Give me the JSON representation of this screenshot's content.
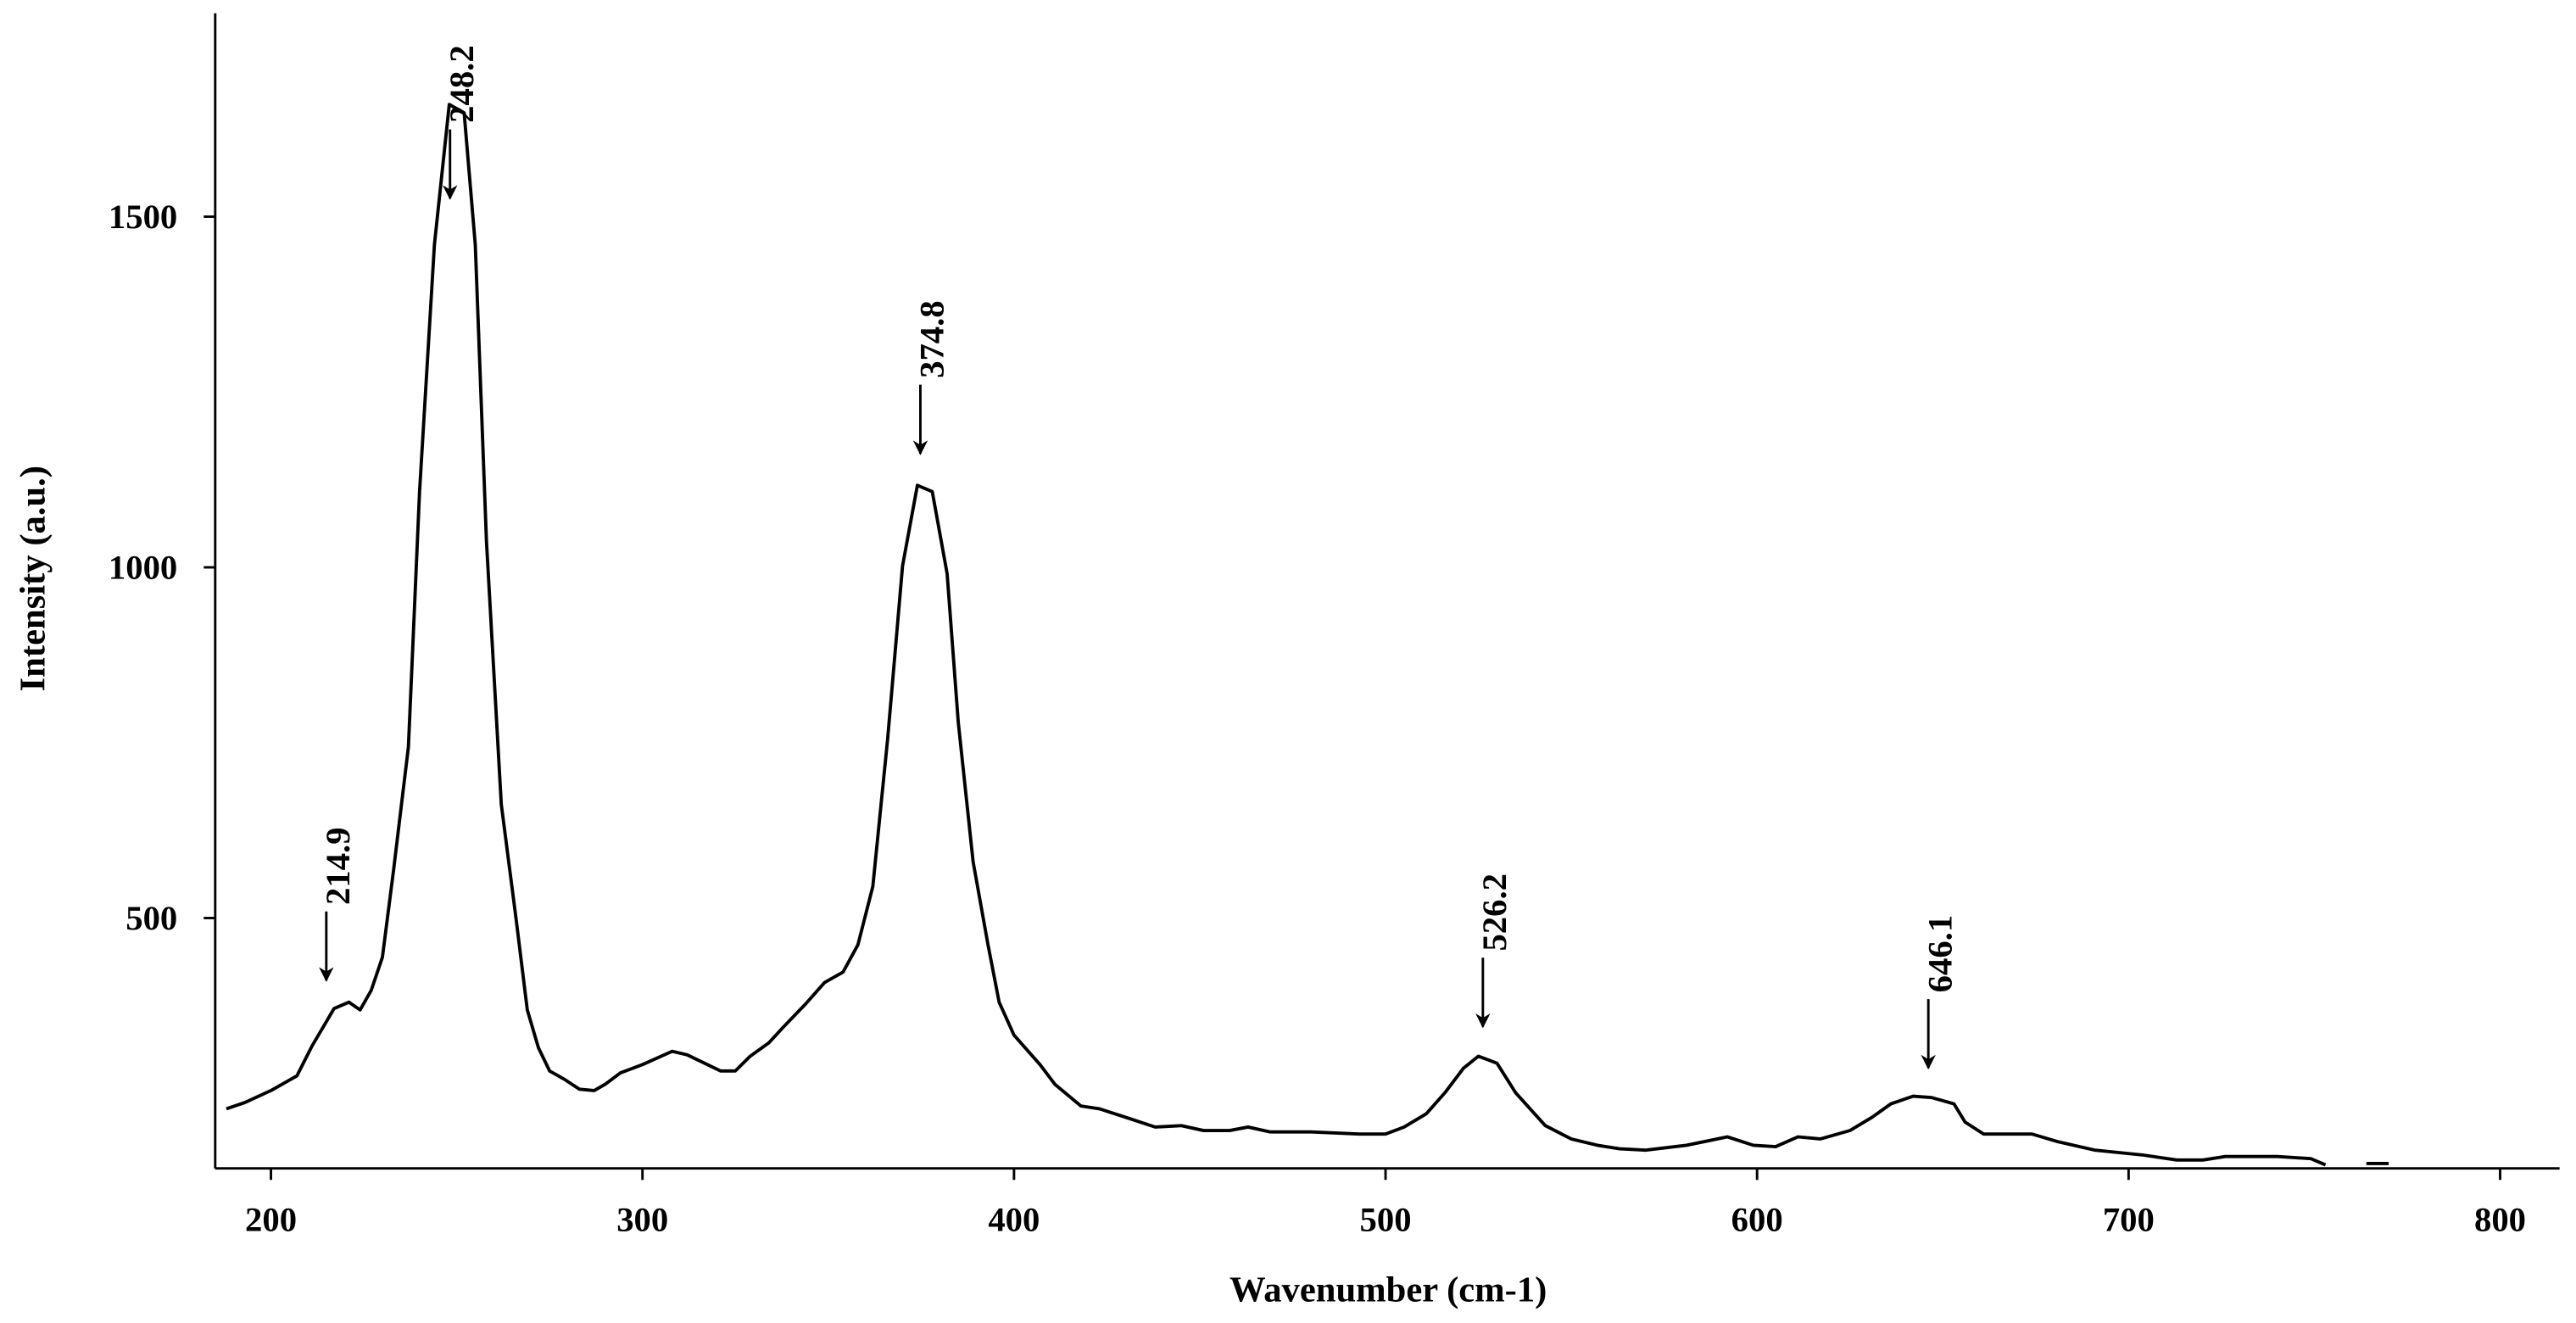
{
  "chart_data": {
    "type": "line",
    "x_label": "Wavenumber (cm-1)",
    "y_label": "Intensity (a.u.)",
    "x": [
      188,
      193,
      200,
      207,
      211,
      217,
      221,
      224,
      227,
      230,
      233,
      237,
      240,
      244,
      248,
      252,
      255,
      258,
      262,
      266,
      269,
      272,
      275,
      279,
      283,
      287,
      290,
      294,
      300,
      308,
      312,
      321,
      325,
      329,
      334,
      338,
      344,
      349,
      354,
      358,
      362,
      366,
      370,
      374,
      378,
      382,
      385,
      389,
      393,
      396,
      400,
      407,
      411,
      418,
      423,
      430,
      438,
      445,
      451,
      458,
      463,
      469,
      480,
      493,
      500,
      505,
      511,
      516,
      521,
      525,
      530,
      535,
      543,
      550,
      557,
      563,
      570,
      581,
      592,
      599,
      605,
      611,
      617,
      625,
      631,
      636,
      642,
      647,
      653,
      656,
      661,
      674,
      681,
      691,
      704,
      713,
      720,
      726,
      740,
      749,
      753,
      758,
      764,
      770
    ],
    "series": [
      {
        "color": "#000000",
        "values": [
          228,
          237,
          254,
          275,
          317,
          371,
          380,
          369,
          397,
          444,
          568,
          744,
          1108,
          1460,
          1660,
          1648,
          1460,
          1038,
          662,
          498,
          369,
          315,
          282,
          270,
          256,
          254,
          263,
          279,
          291,
          310,
          305,
          282,
          282,
          303,
          322,
          345,
          378,
          408,
          423,
          462,
          545,
          756,
          1002,
          1117,
          1108,
          991,
          779,
          580,
          462,
          380,
          333,
          291,
          263,
          232,
          228,
          216,
          202,
          204,
          197,
          197,
          202,
          195,
          195,
          192,
          192,
          202,
          221,
          251,
          286,
          303,
          293,
          251,
          204,
          185,
          176,
          171,
          169,
          176,
          188,
          176,
          174,
          188,
          185,
          197,
          216,
          235,
          246,
          244,
          235,
          209,
          192,
          192,
          181,
          169,
          162,
          155,
          155,
          160,
          160,
          157,
          148,
          null,
          150,
          150
        ]
      }
    ],
    "xlim": [
      185,
      816
    ],
    "ylim": [
      143,
      1790
    ],
    "xticks": [
      200,
      300,
      400,
      500,
      600,
      700,
      800
    ],
    "yticks": [
      500,
      1000,
      1500
    ],
    "annotations": [
      {
        "text": "214.9",
        "x": 214.9,
        "y": 411
      },
      {
        "text": "248.2",
        "x": 248.2,
        "y": 1526
      },
      {
        "text": "374.8",
        "x": 374.8,
        "y": 1162
      },
      {
        "text": "526.2",
        "x": 526.2,
        "y": 345
      },
      {
        "text": "646.1",
        "x": 646.1,
        "y": 286
      }
    ]
  }
}
